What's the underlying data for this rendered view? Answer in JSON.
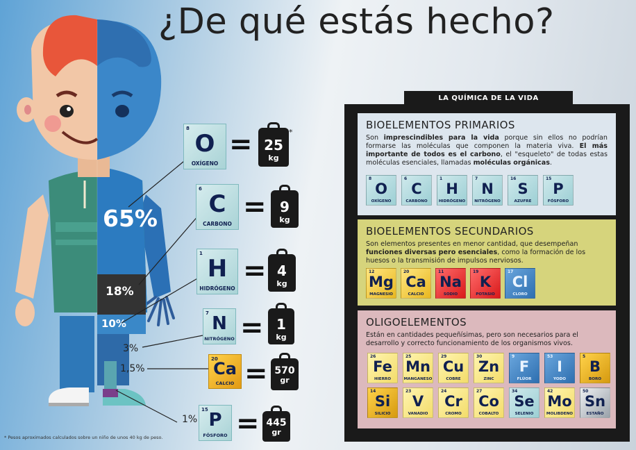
{
  "title": "¿De qué estás hecho?",
  "figure": {
    "pct_oxygen": "65%",
    "pct_carbon": "18%",
    "pct_hydrogen": "10%",
    "pct_nitrogen": "3%",
    "pct_calcium": "1,5%",
    "pct_phosphorus": "1%"
  },
  "composition": [
    {
      "num": "8",
      "sym": "O",
      "name": "OXÍGENO",
      "weight": "25",
      "unit": "kg",
      "asterisk": "*"
    },
    {
      "num": "6",
      "sym": "C",
      "name": "CARBONO",
      "weight": "9",
      "unit": "kg"
    },
    {
      "num": "1",
      "sym": "H",
      "name": "HIDRÓGENO",
      "weight": "4",
      "unit": "kg"
    },
    {
      "num": "7",
      "sym": "N",
      "name": "NITRÓGENO",
      "weight": "1",
      "unit": "kg"
    },
    {
      "num": "20",
      "sym": "Ca",
      "name": "CALCIO",
      "weight": "570",
      "unit": "gr"
    },
    {
      "num": "15",
      "sym": "P",
      "name": "FÓSFORO",
      "weight": "445",
      "unit": "gr"
    }
  ],
  "footnote": "* Pesos aproximados calculados sobre un niño de unos 40 kg de peso.",
  "panel": {
    "header": "LA QUÍMICA DE LA VIDA",
    "primary": {
      "title": "BIOELEMENTOS PRIMARIOS",
      "text_1": "Son ",
      "text_b1": "imprescindibles para la vida",
      "text_2": " porque sin ellos no podrían formarse las moléculas que componen la materia viva. ",
      "text_b2": "El más importante de todos es el carbono",
      "text_3": ", el \"esqueleto\" de todas estas moléculas esenciales, llamadas ",
      "text_b3": "moléculas orgánicas",
      "text_4": ".",
      "elements": [
        {
          "num": "8",
          "sym": "O",
          "name": "OXÍGENO"
        },
        {
          "num": "6",
          "sym": "C",
          "name": "CARBONO"
        },
        {
          "num": "1",
          "sym": "H",
          "name": "HIDRÓGENO"
        },
        {
          "num": "7",
          "sym": "N",
          "name": "NITRÓGENO"
        },
        {
          "num": "16",
          "sym": "S",
          "name": "AZUFRE"
        },
        {
          "num": "15",
          "sym": "P",
          "name": "FÓSFORO"
        }
      ]
    },
    "secondary": {
      "title": "BIOELEMENTOS SECUNDARIOS",
      "text_1": "Son elementos presentes en menor cantidad, que desempeñan ",
      "text_b1": "funciones diversas pero esenciales",
      "text_2": ", como la formación de los huesos o la transmisión de impulsos nerviosos.",
      "elements": [
        {
          "num": "12",
          "sym": "Mg",
          "name": "MAGNESIO"
        },
        {
          "num": "20",
          "sym": "Ca",
          "name": "CALCIO"
        },
        {
          "num": "11",
          "sym": "Na",
          "name": "SODIO"
        },
        {
          "num": "19",
          "sym": "K",
          "name": "POTASIO"
        },
        {
          "num": "17",
          "sym": "Cl",
          "name": "CLORO"
        }
      ]
    },
    "trace": {
      "title": "OLIGOELEMENTOS",
      "text": "Están en cantidades pequeñísimas, pero son necesarios para el desarrollo y correcto funcionamiento de los organismos vivos.",
      "elements": [
        {
          "num": "26",
          "sym": "Fe",
          "name": "HIERRO"
        },
        {
          "num": "25",
          "sym": "Mn",
          "name": "MANGANESO"
        },
        {
          "num": "29",
          "sym": "Cu",
          "name": "COBRE"
        },
        {
          "num": "30",
          "sym": "Zn",
          "name": "ZINC"
        },
        {
          "num": "9",
          "sym": "F",
          "name": "FLÚOR"
        },
        {
          "num": "53",
          "sym": "I",
          "name": "YODO"
        },
        {
          "num": "5",
          "sym": "B",
          "name": "BORO"
        },
        {
          "num": "14",
          "sym": "Si",
          "name": "SILICIO"
        },
        {
          "num": "23",
          "sym": "V",
          "name": "VANADIO"
        },
        {
          "num": "24",
          "sym": "Cr",
          "name": "CROMO"
        },
        {
          "num": "27",
          "sym": "Co",
          "name": "COBALTO"
        },
        {
          "num": "34",
          "sym": "Se",
          "name": "SELENIO"
        },
        {
          "num": "42",
          "sym": "Mo",
          "name": "MOLIBDENO"
        },
        {
          "num": "50",
          "sym": "Sn",
          "name": "ESTAÑO"
        }
      ]
    }
  },
  "colors": {
    "teal_tile": "#a9d3d6",
    "secondary_bg": "#d9d97a",
    "trace_bg": "#dcb9bd",
    "primary_bg": "#dde6ee",
    "dark": "#1a1a1a"
  }
}
